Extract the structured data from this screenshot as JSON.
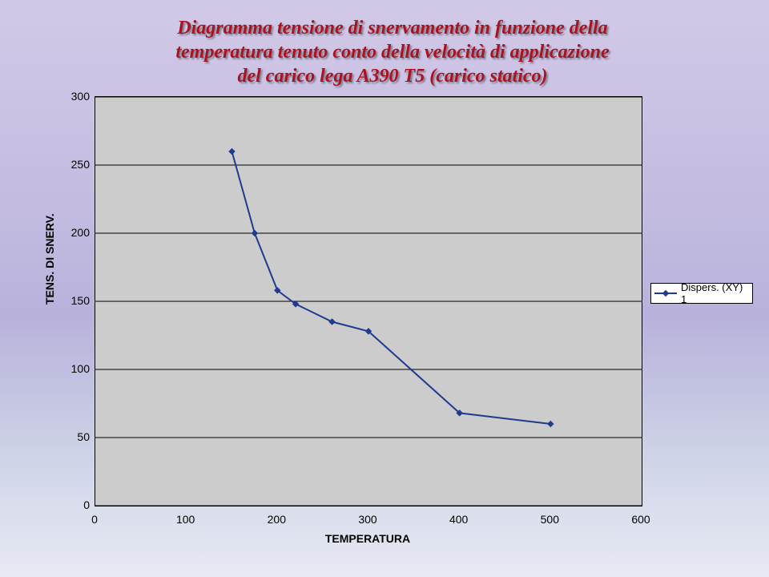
{
  "title": {
    "line1": "Diagramma tensione di snervamento in funzione della",
    "line2": "temperatura tenuto conto della velocità di applicazione",
    "line3": "del carico lega A390 T5 (carico statico)",
    "color": "#aa1220",
    "fontsize": 24
  },
  "chart": {
    "type": "line",
    "plot_bg": "#cccccc",
    "line_color": "#1f3a8f",
    "line_width": 2,
    "marker_shape": "diamond",
    "marker_size": 6,
    "marker_color": "#1f3a8f",
    "x_axis": {
      "title": "TEMPERATURA",
      "min": 0,
      "max": 600,
      "tick_step": 100,
      "tick_labels": [
        "0",
        "100",
        "200",
        "300",
        "400",
        "500",
        "600"
      ]
    },
    "y_axis": {
      "title": "TENS. DI SNERV.",
      "min": 0,
      "max": 300,
      "tick_step": 50,
      "tick_labels": [
        "0",
        "50",
        "100",
        "150",
        "200",
        "250",
        "300"
      ]
    },
    "series": {
      "label": "Dispers. (XY) 1",
      "points": [
        {
          "x": 150,
          "y": 260
        },
        {
          "x": 175,
          "y": 200
        },
        {
          "x": 200,
          "y": 158
        },
        {
          "x": 220,
          "y": 148
        },
        {
          "x": 260,
          "y": 135
        },
        {
          "x": 300,
          "y": 128
        },
        {
          "x": 400,
          "y": 68
        },
        {
          "x": 500,
          "y": 60
        }
      ]
    }
  },
  "legend": {
    "label": "Dispers. (XY) 1"
  }
}
